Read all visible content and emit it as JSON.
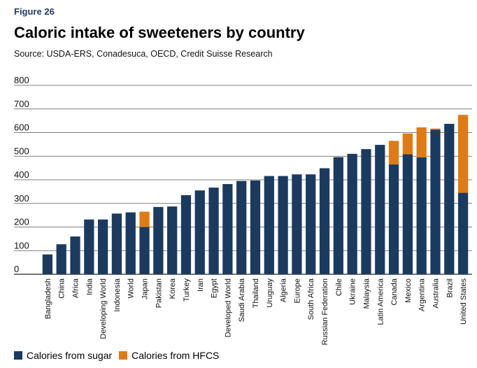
{
  "figure_label": "Figure 26",
  "chart_data": {
    "type": "bar",
    "stacked": true,
    "title": "Caloric intake of sweeteners by country",
    "subtitle": "Source: USDA-ERS, Conadesuca, OECD, Credit Suisse Research",
    "xlabel": "",
    "ylabel": "",
    "ylim": [
      0,
      800
    ],
    "yticks": [
      0,
      100,
      200,
      300,
      400,
      500,
      600,
      700,
      800
    ],
    "grid": true,
    "legend_position": "bottom-left",
    "categories": [
      "Bangladesh",
      "China",
      "Africa",
      "India",
      "Developing World",
      "Indonesia",
      "World",
      "Japan",
      "Pakistan",
      "Korea",
      "Turkey",
      "Iran",
      "Egypt",
      "Developed World",
      "Saudi Arabia",
      "Thailand",
      "Uruguay",
      "Algeria",
      "Europe",
      "South Africa",
      "Russian Federation",
      "Chile",
      "Ukraine",
      "Malaysia",
      "Latin America",
      "Canada",
      "Mexico",
      "Argentina",
      "Australia",
      "Brazil",
      "United States"
    ],
    "series": [
      {
        "name": "Calories from sugar",
        "color": "#1b3a5f",
        "values": [
          84,
          127,
          160,
          232,
          232,
          257,
          262,
          200,
          285,
          287,
          335,
          355,
          367,
          382,
          395,
          397,
          416,
          416,
          423,
          423,
          449,
          496,
          510,
          530,
          548,
          465,
          508,
          495,
          612,
          637,
          345
        ]
      },
      {
        "name": "Calories from HFCS",
        "color": "#e07b14",
        "values": [
          0,
          0,
          0,
          0,
          0,
          0,
          0,
          65,
          0,
          0,
          0,
          0,
          0,
          0,
          0,
          0,
          0,
          0,
          0,
          0,
          0,
          0,
          0,
          0,
          0,
          100,
          88,
          127,
          5,
          0,
          330
        ]
      }
    ]
  }
}
